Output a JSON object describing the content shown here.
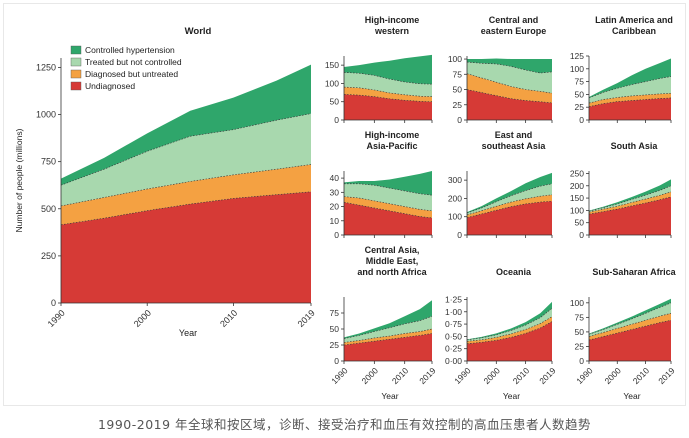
{
  "caption": "1990-2019 年全球和按区域，诊断、接受治疗和血压有效控制的高血压患者人数趋势",
  "colors": {
    "controlled": "#2fa66b",
    "treated": "#a8d8ae",
    "diagnosed": "#f4a142",
    "undiagnosed": "#d63a36",
    "axis": "#333333"
  },
  "chart_data": [
    {
      "id": "world",
      "type": "area",
      "stacked": true,
      "title": "World",
      "xlabel": "Year",
      "ylabel": "Number of people (millions)",
      "x": [
        1990,
        1995,
        2000,
        2005,
        2010,
        2015,
        2019
      ],
      "xticks": [
        "1990",
        "2000",
        "2010",
        "2019"
      ],
      "ylim": [
        0,
        1300
      ],
      "yticks": [
        "0",
        "250",
        "500",
        "750",
        "1000",
        "1250"
      ],
      "legend": [
        "Controlled hypertension",
        "Treated but not controlled",
        "Diagnosed but untreated",
        "Undiagnosed"
      ],
      "series": [
        {
          "name": "Undiagnosed",
          "values": [
            415,
            450,
            490,
            525,
            555,
            575,
            590
          ]
        },
        {
          "name": "Diagnosed but untreated",
          "values": [
            100,
            110,
            115,
            120,
            125,
            135,
            145
          ]
        },
        {
          "name": "Treated but not controlled",
          "values": [
            110,
            150,
            200,
            240,
            240,
            260,
            270
          ]
        },
        {
          "name": "Controlled hypertension",
          "values": [
            35,
            60,
            95,
            135,
            170,
            210,
            260
          ]
        }
      ]
    },
    {
      "id": "high-income-western",
      "type": "area",
      "stacked": true,
      "title": [
        "High-income",
        "western"
      ],
      "x": [
        1990,
        1995,
        2000,
        2005,
        2010,
        2015,
        2019
      ],
      "xticks": [],
      "ylim": [
        0,
        175
      ],
      "yticks": [
        "0",
        "50",
        "100",
        "150"
      ],
      "series": [
        {
          "name": "Undiagnosed",
          "values": [
            70,
            68,
            64,
            58,
            54,
            51,
            50
          ]
        },
        {
          "name": "Diagnosed but untreated",
          "values": [
            20,
            20,
            18,
            16,
            15,
            14,
            14
          ]
        },
        {
          "name": "Treated but not controlled",
          "values": [
            40,
            40,
            40,
            38,
            35,
            34,
            34
          ]
        },
        {
          "name": "Controlled hypertension",
          "values": [
            15,
            22,
            35,
            50,
            65,
            75,
            80
          ]
        }
      ]
    },
    {
      "id": "central-eastern-europe",
      "type": "area",
      "stacked": true,
      "title": [
        "Central and",
        "eastern Europe"
      ],
      "x": [
        1990,
        1995,
        2000,
        2005,
        2010,
        2015,
        2019
      ],
      "xticks": [],
      "ylim": [
        0,
        105
      ],
      "yticks": [
        "0",
        "25",
        "50",
        "75",
        "100"
      ],
      "series": [
        {
          "name": "Undiagnosed",
          "values": [
            50,
            45,
            40,
            35,
            32,
            30,
            28
          ]
        },
        {
          "name": "Diagnosed but untreated",
          "values": [
            26,
            24,
            22,
            20,
            18,
            17,
            16
          ]
        },
        {
          "name": "Treated but not controlled",
          "values": [
            19,
            24,
            30,
            33,
            32,
            30,
            35
          ]
        },
        {
          "name": "Controlled hypertension",
          "values": [
            5,
            7,
            9,
            12,
            18,
            23,
            21
          ]
        }
      ]
    },
    {
      "id": "latin-america-caribbean",
      "type": "area",
      "stacked": true,
      "title": [
        "Latin America and",
        "Caribbean"
      ],
      "x": [
        1990,
        1995,
        2000,
        2005,
        2010,
        2015,
        2019
      ],
      "xticks": [],
      "ylim": [
        0,
        125
      ],
      "yticks": [
        "0",
        "25",
        "50",
        "75",
        "100",
        "125"
      ],
      "series": [
        {
          "name": "Undiagnosed",
          "values": [
            26,
            32,
            36,
            38,
            40,
            42,
            43
          ]
        },
        {
          "name": "Diagnosed but untreated",
          "values": [
            7,
            8,
            8,
            9,
            9,
            9,
            9
          ]
        },
        {
          "name": "Treated but not controlled",
          "values": [
            10,
            14,
            18,
            22,
            26,
            30,
            33
          ]
        },
        {
          "name": "Controlled hypertension",
          "values": [
            2,
            5,
            10,
            18,
            25,
            30,
            35
          ]
        }
      ]
    },
    {
      "id": "high-income-asia-pacific",
      "type": "area",
      "stacked": true,
      "title": [
        "High-income",
        "Asia-Pacific"
      ],
      "x": [
        1990,
        1995,
        2000,
        2005,
        2010,
        2015,
        2019
      ],
      "xticks": [],
      "ylim": [
        0,
        45
      ],
      "yticks": [
        "0",
        "10",
        "20",
        "30",
        "40"
      ],
      "series": [
        {
          "name": "Undiagnosed",
          "values": [
            23,
            21,
            19,
            17,
            15,
            13,
            12
          ]
        },
        {
          "name": "Diagnosed but untreated",
          "values": [
            4,
            5,
            5,
            5,
            5,
            5,
            5
          ]
        },
        {
          "name": "Treated but not controlled",
          "values": [
            9,
            10,
            11,
            11,
            11,
            11,
            11
          ]
        },
        {
          "name": "Controlled hypertension",
          "values": [
            1,
            2,
            3,
            6,
            10,
            14,
            17
          ]
        }
      ]
    },
    {
      "id": "east-southeast-asia",
      "type": "area",
      "stacked": true,
      "title": [
        "East and",
        "southeast Asia"
      ],
      "x": [
        1990,
        1995,
        2000,
        2005,
        2010,
        2015,
        2019
      ],
      "xticks": [],
      "ylim": [
        0,
        350
      ],
      "yticks": [
        "0",
        "100",
        "200",
        "300"
      ],
      "series": [
        {
          "name": "Undiagnosed",
          "values": [
            95,
            115,
            135,
            155,
            170,
            180,
            185
          ]
        },
        {
          "name": "Diagnosed but untreated",
          "values": [
            15,
            18,
            22,
            25,
            28,
            32,
            35
          ]
        },
        {
          "name": "Treated but not controlled",
          "values": [
            10,
            15,
            25,
            35,
            45,
            55,
            60
          ]
        },
        {
          "name": "Controlled hypertension",
          "values": [
            5,
            10,
            18,
            25,
            40,
            50,
            60
          ]
        }
      ]
    },
    {
      "id": "south-asia",
      "type": "area",
      "stacked": true,
      "title": [
        "South Asia"
      ],
      "x": [
        1990,
        1995,
        2000,
        2005,
        2010,
        2015,
        2019
      ],
      "xticks": [],
      "ylim": [
        0,
        260
      ],
      "yticks": [
        "0",
        "50",
        "100",
        "150",
        "200",
        "250"
      ],
      "series": [
        {
          "name": "Undiagnosed",
          "values": [
            85,
            95,
            105,
            118,
            130,
            143,
            155
          ]
        },
        {
          "name": "Diagnosed but untreated",
          "values": [
            8,
            10,
            12,
            14,
            16,
            18,
            20
          ]
        },
        {
          "name": "Treated but not controlled",
          "values": [
            4,
            6,
            9,
            12,
            16,
            20,
            25
          ]
        },
        {
          "name": "Controlled hypertension",
          "values": [
            2,
            4,
            7,
            10,
            14,
            20,
            26
          ]
        }
      ]
    },
    {
      "id": "central-asia-middle-east-north-africa",
      "type": "area",
      "stacked": true,
      "title": [
        "Central Asia,",
        "Middle East,",
        "and north Africa"
      ],
      "xlabel": "Year",
      "x": [
        1990,
        1995,
        2000,
        2005,
        2010,
        2015,
        2019
      ],
      "xticks": [
        "1990",
        "2000",
        "2010",
        "2019"
      ],
      "ylim": [
        0,
        100
      ],
      "yticks": [
        "0",
        "25",
        "50",
        "75"
      ],
      "series": [
        {
          "name": "Undiagnosed",
          "values": [
            25,
            28,
            31,
            34,
            37,
            40,
            43
          ]
        },
        {
          "name": "Diagnosed but untreated",
          "values": [
            4,
            4,
            5,
            5,
            6,
            6,
            7
          ]
        },
        {
          "name": "Treated but not controlled",
          "values": [
            6,
            8,
            10,
            13,
            15,
            17,
            20
          ]
        },
        {
          "name": "Controlled hypertension",
          "values": [
            2,
            3,
            5,
            7,
            12,
            18,
            25
          ]
        }
      ]
    },
    {
      "id": "oceania",
      "type": "area",
      "stacked": true,
      "title": [
        "Oceania"
      ],
      "xlabel": "Year",
      "x": [
        1990,
        1995,
        2000,
        2005,
        2010,
        2015,
        2019
      ],
      "xticks": [
        "1990",
        "2000",
        "2010",
        "2019"
      ],
      "ylim": [
        0,
        1.3
      ],
      "yticks": [
        "0·00",
        "0·25",
        "0·50",
        "0·75",
        "1·00",
        "1·25"
      ],
      "series": [
        {
          "name": "Undiagnosed",
          "values": [
            0.35,
            0.38,
            0.42,
            0.48,
            0.56,
            0.67,
            0.8
          ]
        },
        {
          "name": "Diagnosed but untreated",
          "values": [
            0.05,
            0.05,
            0.06,
            0.07,
            0.08,
            0.09,
            0.1
          ]
        },
        {
          "name": "Treated but not controlled",
          "values": [
            0.03,
            0.04,
            0.05,
            0.07,
            0.09,
            0.12,
            0.17
          ]
        },
        {
          "name": "Controlled hypertension",
          "values": [
            0.01,
            0.02,
            0.03,
            0.04,
            0.06,
            0.09,
            0.13
          ]
        }
      ]
    },
    {
      "id": "sub-saharan-africa",
      "type": "area",
      "stacked": true,
      "title": [
        "Sub-Saharan Africa"
      ],
      "xlabel": "Year",
      "x": [
        1990,
        1995,
        2000,
        2005,
        2010,
        2015,
        2019
      ],
      "xticks": [
        "1990",
        "2000",
        "2010",
        "2019"
      ],
      "ylim": [
        0,
        110
      ],
      "yticks": [
        "0",
        "25",
        "50",
        "75",
        "100"
      ],
      "series": [
        {
          "name": "Undiagnosed",
          "values": [
            36,
            42,
            48,
            54,
            60,
            66,
            70
          ]
        },
        {
          "name": "Diagnosed but untreated",
          "values": [
            6,
            7,
            8,
            9,
            10,
            11,
            12
          ]
        },
        {
          "name": "Treated but not controlled",
          "values": [
            4,
            5,
            7,
            9,
            12,
            15,
            18
          ]
        },
        {
          "name": "Controlled hypertension",
          "values": [
            1,
            2,
            3,
            4,
            5,
            6,
            7
          ]
        }
      ]
    }
  ]
}
